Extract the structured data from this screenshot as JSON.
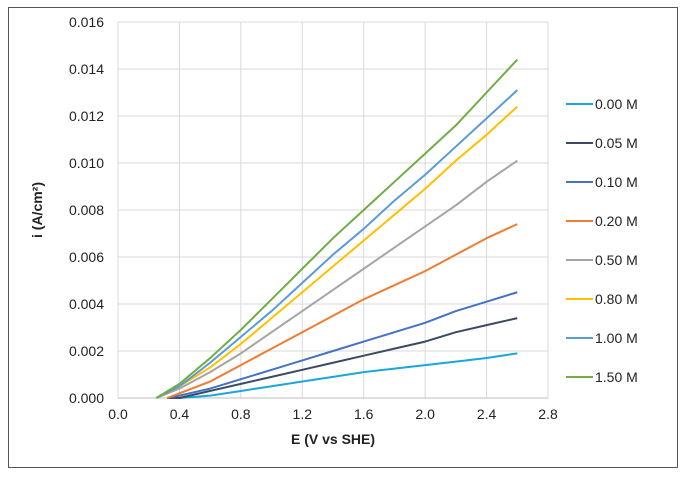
{
  "chart_data": {
    "type": "line",
    "title": "",
    "xlabel": "E (V vs SHE)",
    "ylabel": "i (A/cm²)",
    "xlim": [
      0.0,
      2.8
    ],
    "ylim": [
      0.0,
      0.016
    ],
    "xticks": [
      "0.0",
      "0.4",
      "0.8",
      "1.2",
      "1.6",
      "2.0",
      "2.4",
      "2.8"
    ],
    "yticks": [
      "0.000",
      "0.002",
      "0.004",
      "0.006",
      "0.008",
      "0.010",
      "0.012",
      "0.014",
      "0.016"
    ],
    "grid": true,
    "legend": "right",
    "x": [
      0.25,
      0.4,
      0.6,
      0.8,
      1.0,
      1.2,
      1.4,
      1.6,
      1.8,
      2.0,
      2.2,
      2.4,
      2.6
    ],
    "series": [
      {
        "name": "0.00 M",
        "color": "#1aa7dc",
        "values": [
          null,
          0.0,
          0.0001,
          0.0003,
          0.0005,
          0.0007,
          0.0009,
          0.0011,
          0.00125,
          0.0014,
          0.00155,
          0.0017,
          0.0019
        ]
      },
      {
        "name": "0.05 M",
        "color": "#3b4a63",
        "values": [
          null,
          0.0,
          0.0003,
          0.0006,
          0.0009,
          0.0012,
          0.0015,
          0.0018,
          0.0021,
          0.0024,
          0.0028,
          0.0031,
          0.0034
        ]
      },
      {
        "name": "0.10 M",
        "color": "#4472c4",
        "values": [
          null,
          0.0001,
          0.0004,
          0.0008,
          0.0012,
          0.0016,
          0.002,
          0.0024,
          0.0028,
          0.0032,
          0.0037,
          0.0041,
          0.0045
        ]
      },
      {
        "name": "0.20 M",
        "color": "#ed7d31",
        "values": [
          null,
          0.0002,
          0.0007,
          0.0014,
          0.0021,
          0.0028,
          0.0035,
          0.0042,
          0.0048,
          0.0054,
          0.0061,
          0.0068,
          0.0074
        ]
      },
      {
        "name": "0.50 M",
        "color": "#a5a5a5",
        "values": [
          0.0,
          0.0004,
          0.0011,
          0.0019,
          0.0028,
          0.0037,
          0.0046,
          0.0055,
          0.0064,
          0.0073,
          0.0082,
          0.0092,
          0.0101
        ]
      },
      {
        "name": "0.80 M",
        "color": "#ffc000",
        "values": [
          0.0,
          0.0005,
          0.0013,
          0.0023,
          0.0034,
          0.0045,
          0.0056,
          0.0067,
          0.0078,
          0.0089,
          0.0101,
          0.0112,
          0.0124
        ]
      },
      {
        "name": "1.00 M",
        "color": "#5b9bd5",
        "values": [
          0.0,
          0.0005,
          0.0015,
          0.0026,
          0.0037,
          0.0049,
          0.0061,
          0.0072,
          0.0084,
          0.0095,
          0.0107,
          0.0119,
          0.0131
        ]
      },
      {
        "name": "1.50 M",
        "color": "#70ad47",
        "values": [
          0.0,
          0.0006,
          0.0017,
          0.0029,
          0.0042,
          0.0055,
          0.0068,
          0.008,
          0.0092,
          0.0104,
          0.0116,
          0.013,
          0.0144
        ]
      }
    ]
  }
}
